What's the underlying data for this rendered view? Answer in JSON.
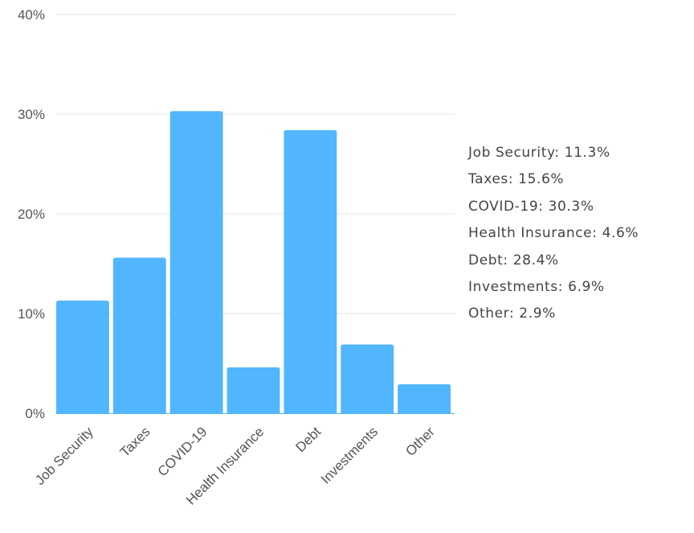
{
  "chart_data": {
    "type": "bar",
    "categories": [
      "Job Security",
      "Taxes",
      "COVID-19",
      "Health Insurance",
      "Debt",
      "Investments",
      "Other"
    ],
    "values": [
      11.3,
      15.6,
      30.3,
      4.6,
      28.4,
      6.9,
      2.9
    ],
    "ylim": [
      0,
      40
    ],
    "yticks": [
      "0%",
      "10%",
      "20%",
      "30%",
      "40%"
    ],
    "grid": true,
    "bar_color": "#52b6fe",
    "legend_position": "right",
    "legend": [
      "Job Security: 11.3%",
      "Taxes: 15.6%",
      "COVID-19: 30.3%",
      "Health Insurance: 4.6%",
      "Debt: 28.4%",
      "Investments: 6.9%",
      "Other: 2.9%"
    ]
  }
}
